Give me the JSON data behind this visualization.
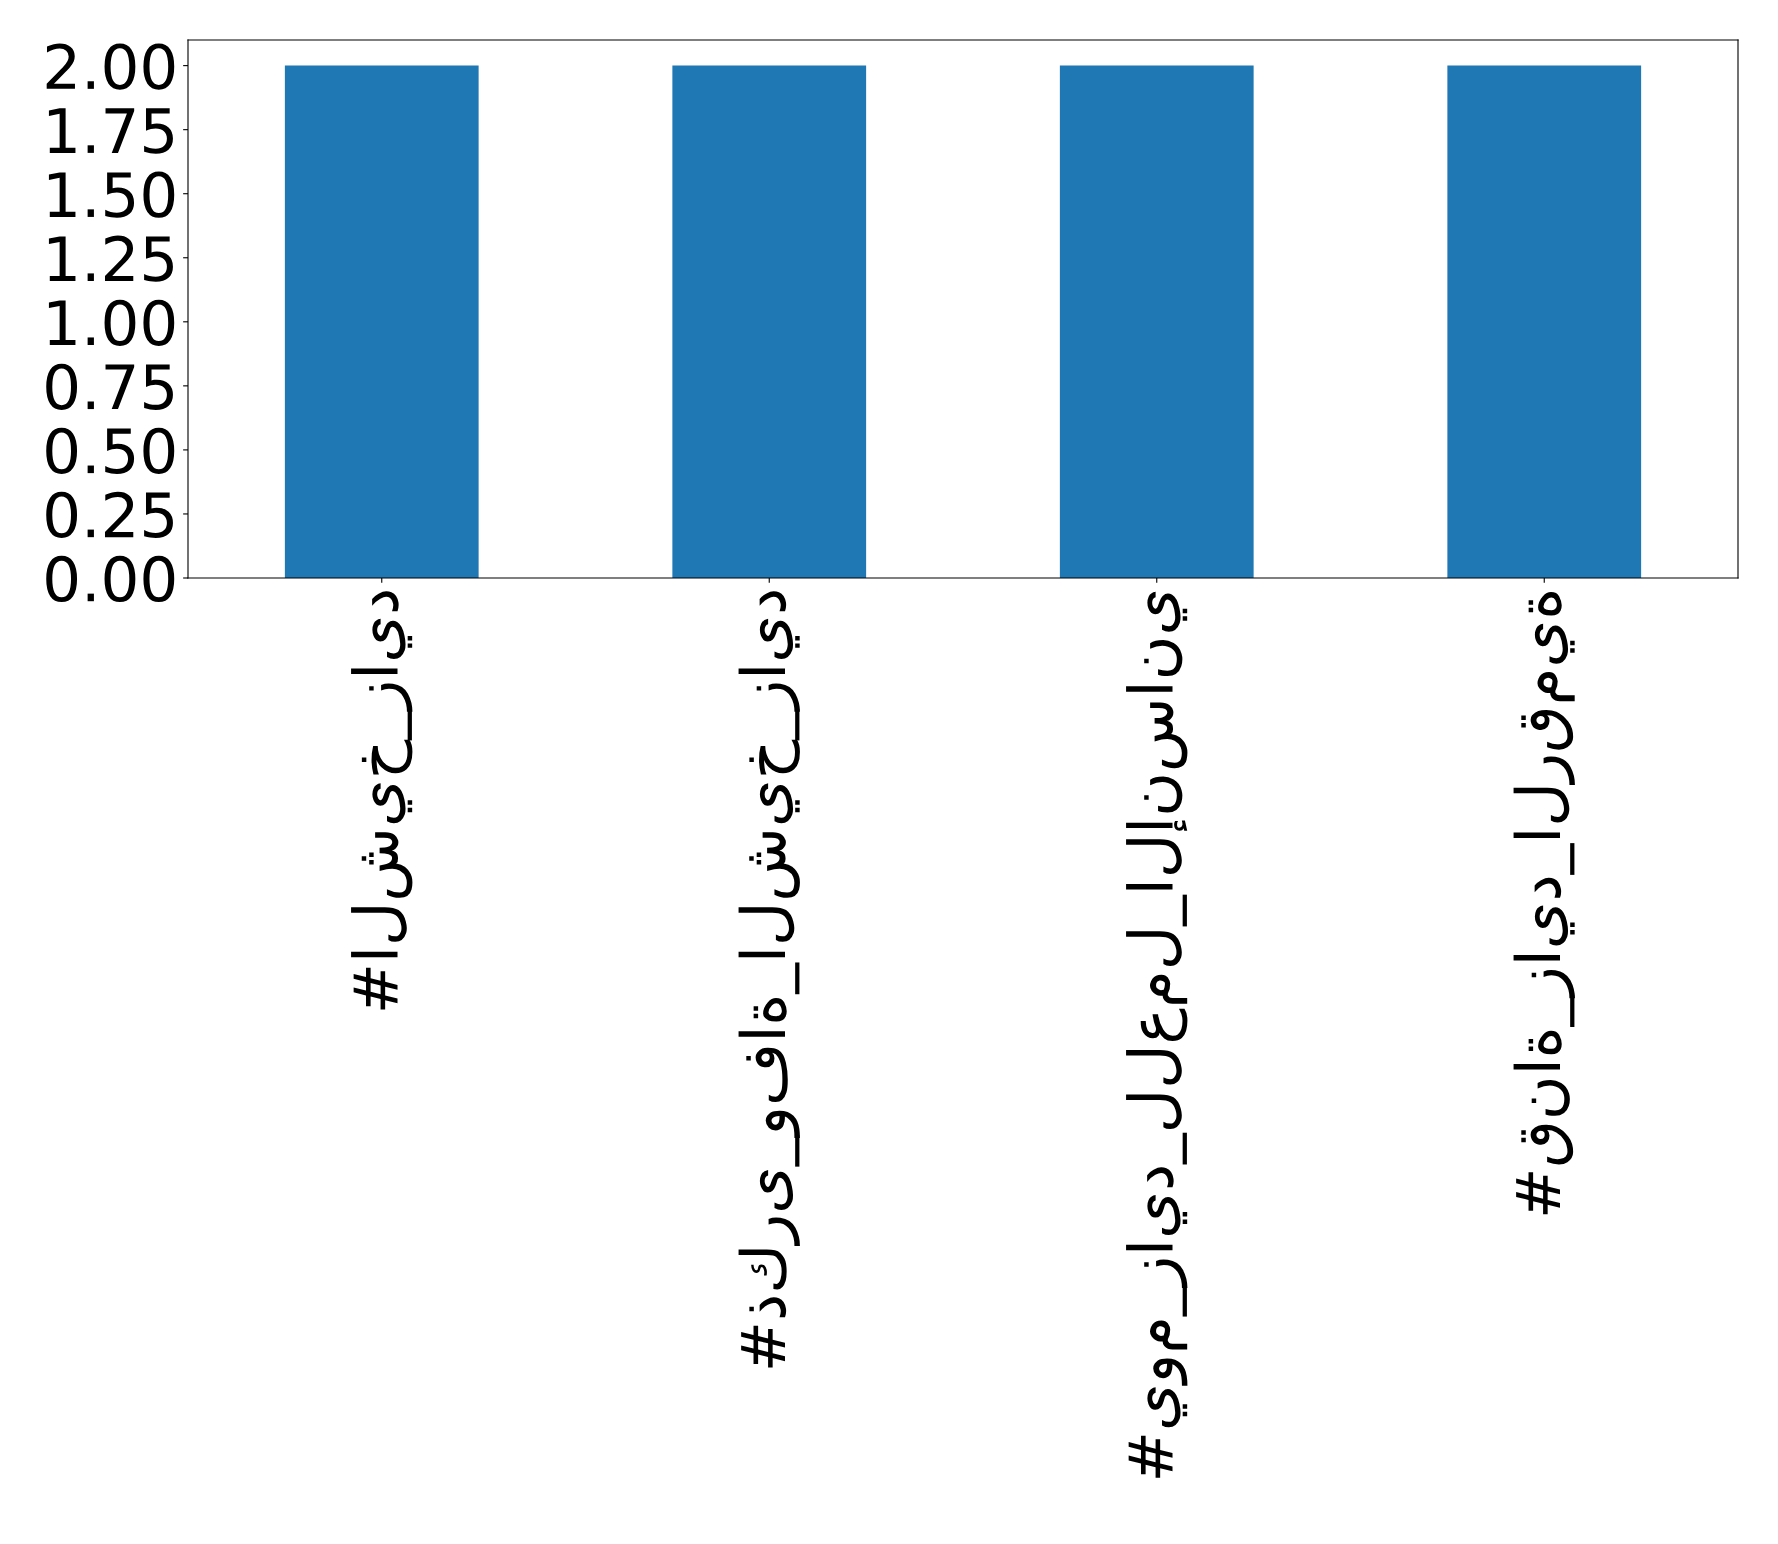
{
  "chart_data": {
    "type": "bar",
    "categories": [
      "#الشيخ_زايد",
      "#ذكرى_وفاة_الشيخ_زايد",
      "#يوم_زايد_للعمل_الإنساني",
      "#قناة_زايد_الرقمية"
    ],
    "values": [
      2,
      2,
      2,
      2
    ],
    "color": "#1f77b4",
    "ylim": [
      0,
      2.1
    ],
    "yticks": [
      {
        "value": 0,
        "label": "0.00"
      },
      {
        "value": 0.25,
        "label": "0.25"
      },
      {
        "value": 0.5,
        "label": "0.50"
      },
      {
        "value": 0.75,
        "label": "0.75"
      },
      {
        "value": 1,
        "label": "1.00"
      },
      {
        "value": 1.25,
        "label": "1.25"
      },
      {
        "value": 1.5,
        "label": "1.50"
      },
      {
        "value": 1.75,
        "label": "1.75"
      },
      {
        "value": 2,
        "label": "2.00"
      }
    ],
    "grid": false,
    "legend": false
  }
}
